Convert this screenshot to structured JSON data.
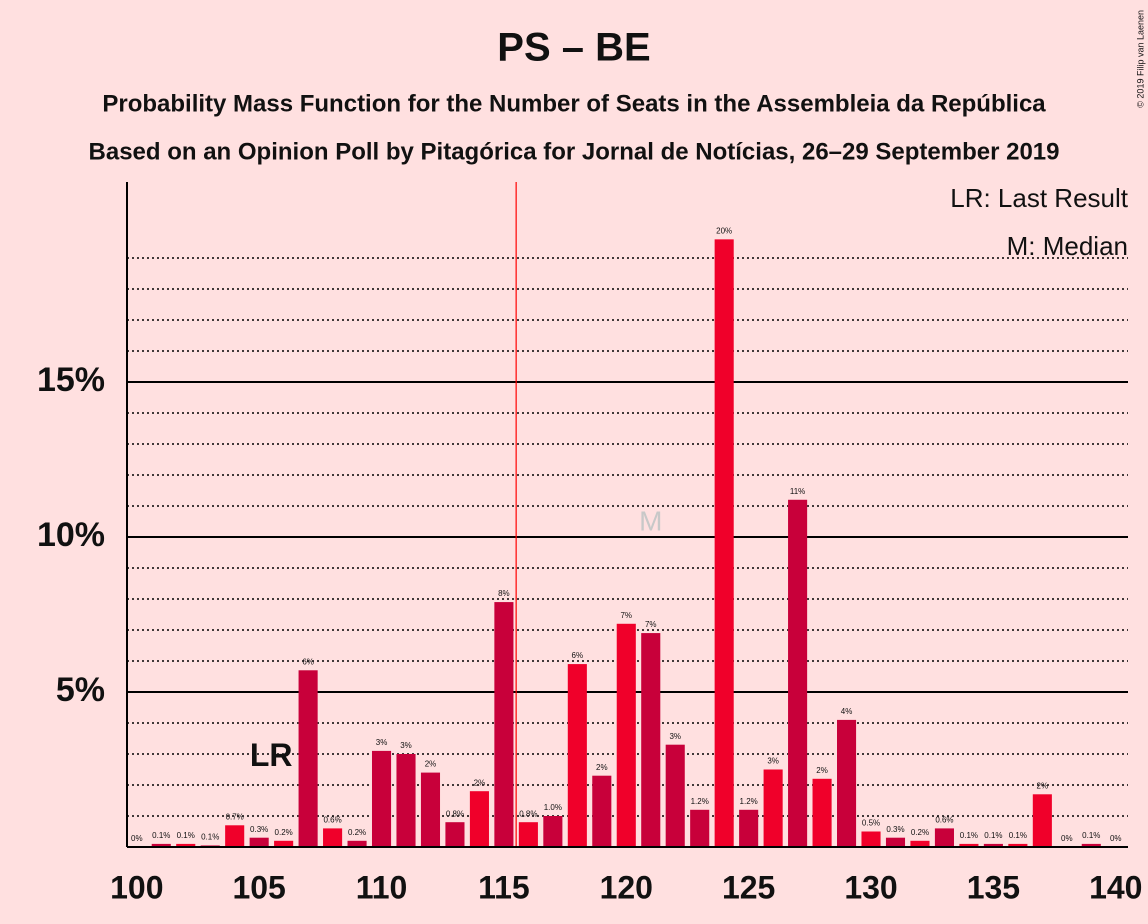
{
  "chart_data": {
    "type": "bar",
    "title": "PS – BE",
    "subtitle": "Probability Mass Function for the Number of Seats in the Assembleia da República",
    "subtitle2": "Based on an Opinion Poll by Pitagórica for Jornal de Notícias, 26–29 September 2019",
    "copyright": "© 2019 Filip van Laenen",
    "x": [
      100,
      101,
      102,
      103,
      104,
      105,
      106,
      107,
      108,
      109,
      110,
      111,
      112,
      113,
      114,
      115,
      116,
      117,
      118,
      119,
      120,
      121,
      122,
      123,
      124,
      125,
      126,
      127,
      128,
      129,
      130,
      131,
      132,
      133,
      134,
      135,
      136,
      137,
      138,
      139,
      140
    ],
    "values": [
      0,
      0.1,
      0.1,
      0.05,
      0.7,
      0.3,
      0.2,
      5.7,
      0.6,
      0.2,
      3.1,
      3.0,
      2.4,
      0.8,
      1.8,
      7.9,
      0.8,
      1.0,
      5.9,
      2.3,
      7.2,
      6.9,
      3.3,
      1.2,
      19.6,
      1.2,
      2.5,
      11.2,
      2.2,
      4.1,
      0.5,
      0.3,
      0.2,
      0.6,
      0.1,
      0.1,
      0.1,
      1.7,
      0,
      0.1,
      0
    ],
    "value_labels": [
      "0%",
      "0.1%",
      "0.1%",
      "0.1%",
      "0.7%",
      "0.3%",
      "0.2%",
      "6%",
      "0.6%",
      "0.2%",
      "3%",
      "3%",
      "2%",
      "0.8%",
      "2%",
      "8%",
      "0.8%",
      "1.0%",
      "6%",
      "2%",
      "7%",
      "7%",
      "3%",
      "1.2%",
      "20%",
      "1.2%",
      "3%",
      "11%",
      "2%",
      "4%",
      "0.5%",
      "0.3%",
      "0.2%",
      "0.6%",
      "0.1%",
      "0.1%",
      "0.1%",
      "2%",
      "0%",
      "0.1%",
      "0%"
    ],
    "colors": [
      "#f0002a",
      "#c8003a",
      "#f0002a",
      "#c8003a",
      "#f0002a",
      "#c8003a",
      "#f0002a",
      "#c8003a",
      "#f0002a",
      "#c8003a",
      "#c8003a",
      "#c8003a",
      "#c8003a",
      "#c8003a",
      "#f0002a",
      "#c8003a",
      "#f0002a",
      "#c8003a",
      "#f0002a",
      "#c8003a",
      "#f0002a",
      "#c8003a",
      "#c8003a",
      "#c8003a",
      "#f0002a",
      "#c8003a",
      "#f0002a",
      "#c8003a",
      "#f0002a",
      "#c8003a",
      "#f0002a",
      "#c8003a",
      "#f0002a",
      "#c8003a",
      "#f0002a",
      "#c8003a",
      "#f0002a",
      "#f0002a",
      "#f0002a",
      "#c8003a",
      "#f0002a"
    ],
    "xlim": [
      99.6,
      140.5
    ],
    "xticks": [
      100,
      105,
      110,
      115,
      120,
      125,
      130,
      135,
      140
    ],
    "ylim": [
      0,
      21.45
    ],
    "yticks": [
      {
        "value": 5,
        "label": "5%"
      },
      {
        "value": 10,
        "label": "10%"
      },
      {
        "value": 15,
        "label": "15%"
      }
    ],
    "minor_yticks": [
      1,
      2,
      3,
      4,
      6,
      7,
      8,
      9,
      11,
      12,
      13,
      14,
      16,
      17,
      18,
      19
    ],
    "vline": 115.5,
    "annotations": [
      {
        "text": "LR",
        "x": 105
      },
      {
        "text": "M",
        "x": 121
      }
    ],
    "legend": [
      "LR: Last Result",
      "M: Median"
    ]
  }
}
